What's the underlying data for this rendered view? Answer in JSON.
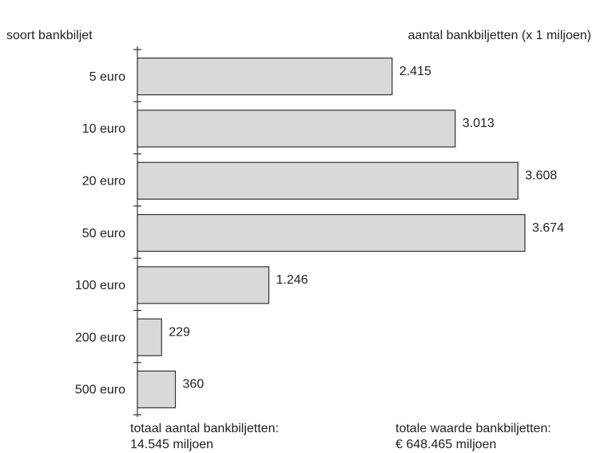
{
  "chart_data": {
    "type": "bar",
    "orientation": "horizontal",
    "category_axis_label": "soort bankbiljet",
    "value_axis_label": "aantal bankbiljetten (x 1 miljoen)",
    "categories": [
      "5 euro",
      "10 euro",
      "20 euro",
      "50 euro",
      "100 euro",
      "200 euro",
      "500 euro"
    ],
    "values": [
      2415,
      3013,
      3608,
      3674,
      1246,
      229,
      360
    ],
    "value_labels": [
      "2.415",
      "3.013",
      "3.608",
      "3.674",
      "1.246",
      "229",
      "360"
    ],
    "color": "#d9d9d9",
    "annotations": [
      [
        "totaal aantal bankbiljetten:",
        "14.545 miljoen"
      ],
      [
        "totale waarde bankbiljetten:",
        "€ 648.465 miljoen"
      ]
    ]
  }
}
